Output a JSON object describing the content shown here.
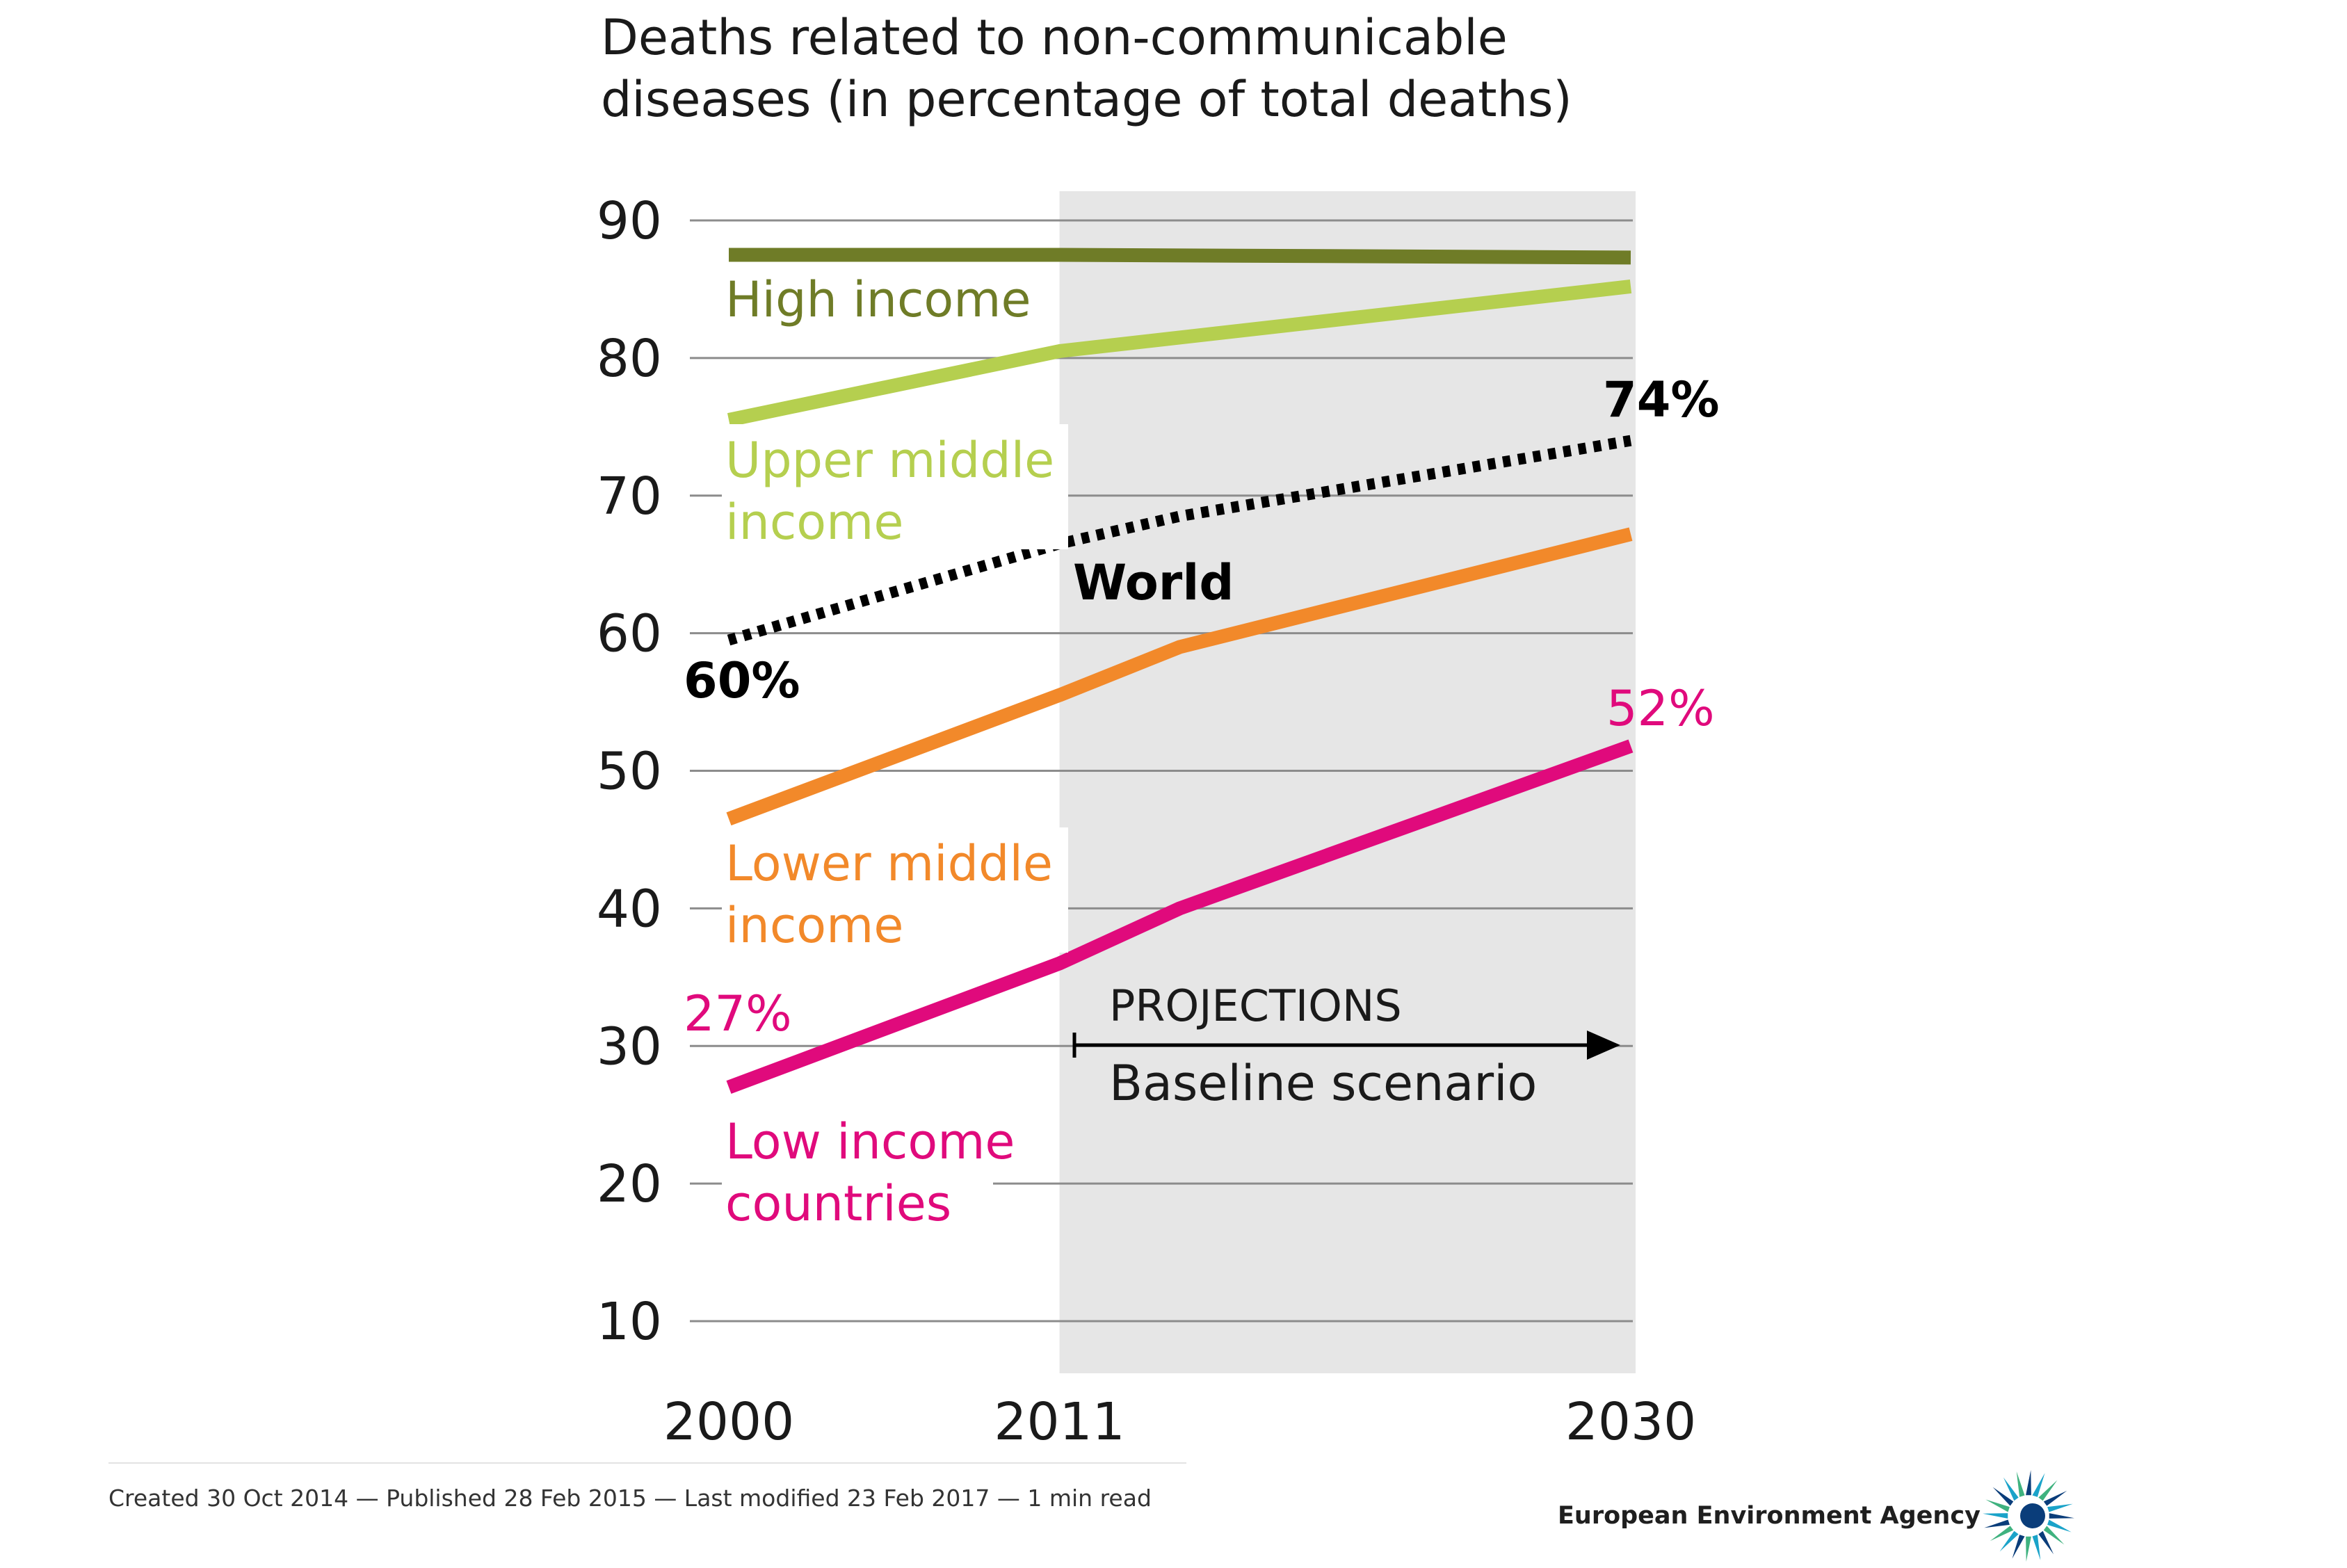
{
  "chart_data": {
    "type": "line",
    "title_lines": [
      "Deaths related to non-communicable",
      "diseases (in percentage of total deaths)"
    ],
    "x_ticks": [
      "2000",
      "2011",
      "2030"
    ],
    "y_ticks": [
      10,
      20,
      30,
      40,
      50,
      60,
      70,
      80,
      90
    ],
    "ylim": [
      6,
      90
    ],
    "xlim": [
      2000,
      2030
    ],
    "grid": true,
    "shaded_region": {
      "x_start": 2011,
      "x_end": 2030,
      "color": "#e6e6e6"
    },
    "series": [
      {
        "key": "high",
        "label_lines": [
          "High income"
        ],
        "color": "#6f7c27",
        "style": "solid",
        "x": [
          2000,
          2011,
          2030
        ],
        "y": [
          87.5,
          87.5,
          87.3
        ]
      },
      {
        "key": "upper",
        "label_lines": [
          "Upper middle",
          "income"
        ],
        "color": "#b5cf4f",
        "style": "solid",
        "x": [
          2000,
          2011,
          2030
        ],
        "y": [
          75.5,
          80.5,
          85.2
        ]
      },
      {
        "key": "world",
        "label_lines": [
          "World"
        ],
        "color": "#000000",
        "style": "dotted",
        "x": [
          2000,
          2011,
          2015,
          2030
        ],
        "y": [
          59.5,
          66.5,
          68.5,
          74.0
        ],
        "start_label": "60%",
        "end_label": "74%"
      },
      {
        "key": "lower",
        "label_lines": [
          "Lower middle",
          "income"
        ],
        "color": "#f2892a",
        "style": "solid",
        "x": [
          2000,
          2011,
          2015,
          2030
        ],
        "y": [
          46.5,
          55.5,
          59.0,
          67.2
        ]
      },
      {
        "key": "low",
        "label_lines": [
          "Low income",
          "countries"
        ],
        "color": "#e00a7c",
        "style": "solid",
        "x": [
          2000,
          2011,
          2015,
          2030
        ],
        "y": [
          27.0,
          36.0,
          40.0,
          51.8
        ],
        "start_label": "27%",
        "end_label": "52%"
      }
    ],
    "annotations": {
      "projections": "PROJECTIONS",
      "scenario": "Baseline scenario"
    }
  },
  "footer": {
    "meta": "Created 30 Oct 2014  — Published 28 Feb 2015  — Last modified 23 Feb 2017  — 1 min read",
    "brand": "European Environment Agency"
  },
  "icons": {
    "brand_logo": "eea-sun-logo-icon"
  }
}
